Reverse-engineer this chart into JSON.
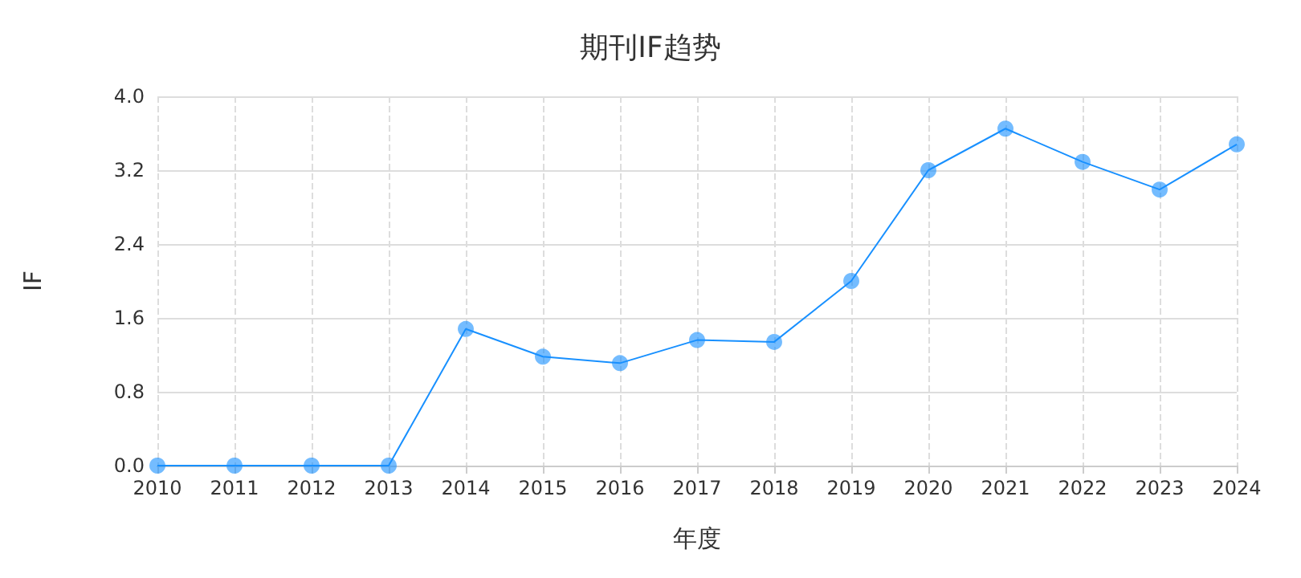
{
  "chart_data": {
    "type": "line",
    "title": "期刊IF趋势",
    "xlabel": "年度",
    "ylabel": "IF",
    "categories": [
      "2010",
      "2011",
      "2012",
      "2013",
      "2014",
      "2015",
      "2016",
      "2017",
      "2018",
      "2019",
      "2020",
      "2021",
      "2022",
      "2023",
      "2024"
    ],
    "series": [
      {
        "color": "#1890ff",
        "values": [
          0,
          0,
          0,
          0,
          1.48,
          1.18,
          1.11,
          1.36,
          1.34,
          2.0,
          3.2,
          3.65,
          3.29,
          2.99,
          3.48
        ]
      }
    ],
    "ylim": [
      0,
      4
    ],
    "yticks": [
      {
        "value": 0,
        "label": "0.0"
      },
      {
        "value": 0.8,
        "label": "0.8"
      },
      {
        "value": 1.6,
        "label": "1.6"
      },
      {
        "value": 2.4,
        "label": "2.4"
      },
      {
        "value": 3.2,
        "label": "3.2"
      },
      {
        "value": 4,
        "label": "4.0"
      }
    ],
    "grid": true,
    "marker": "circle"
  }
}
